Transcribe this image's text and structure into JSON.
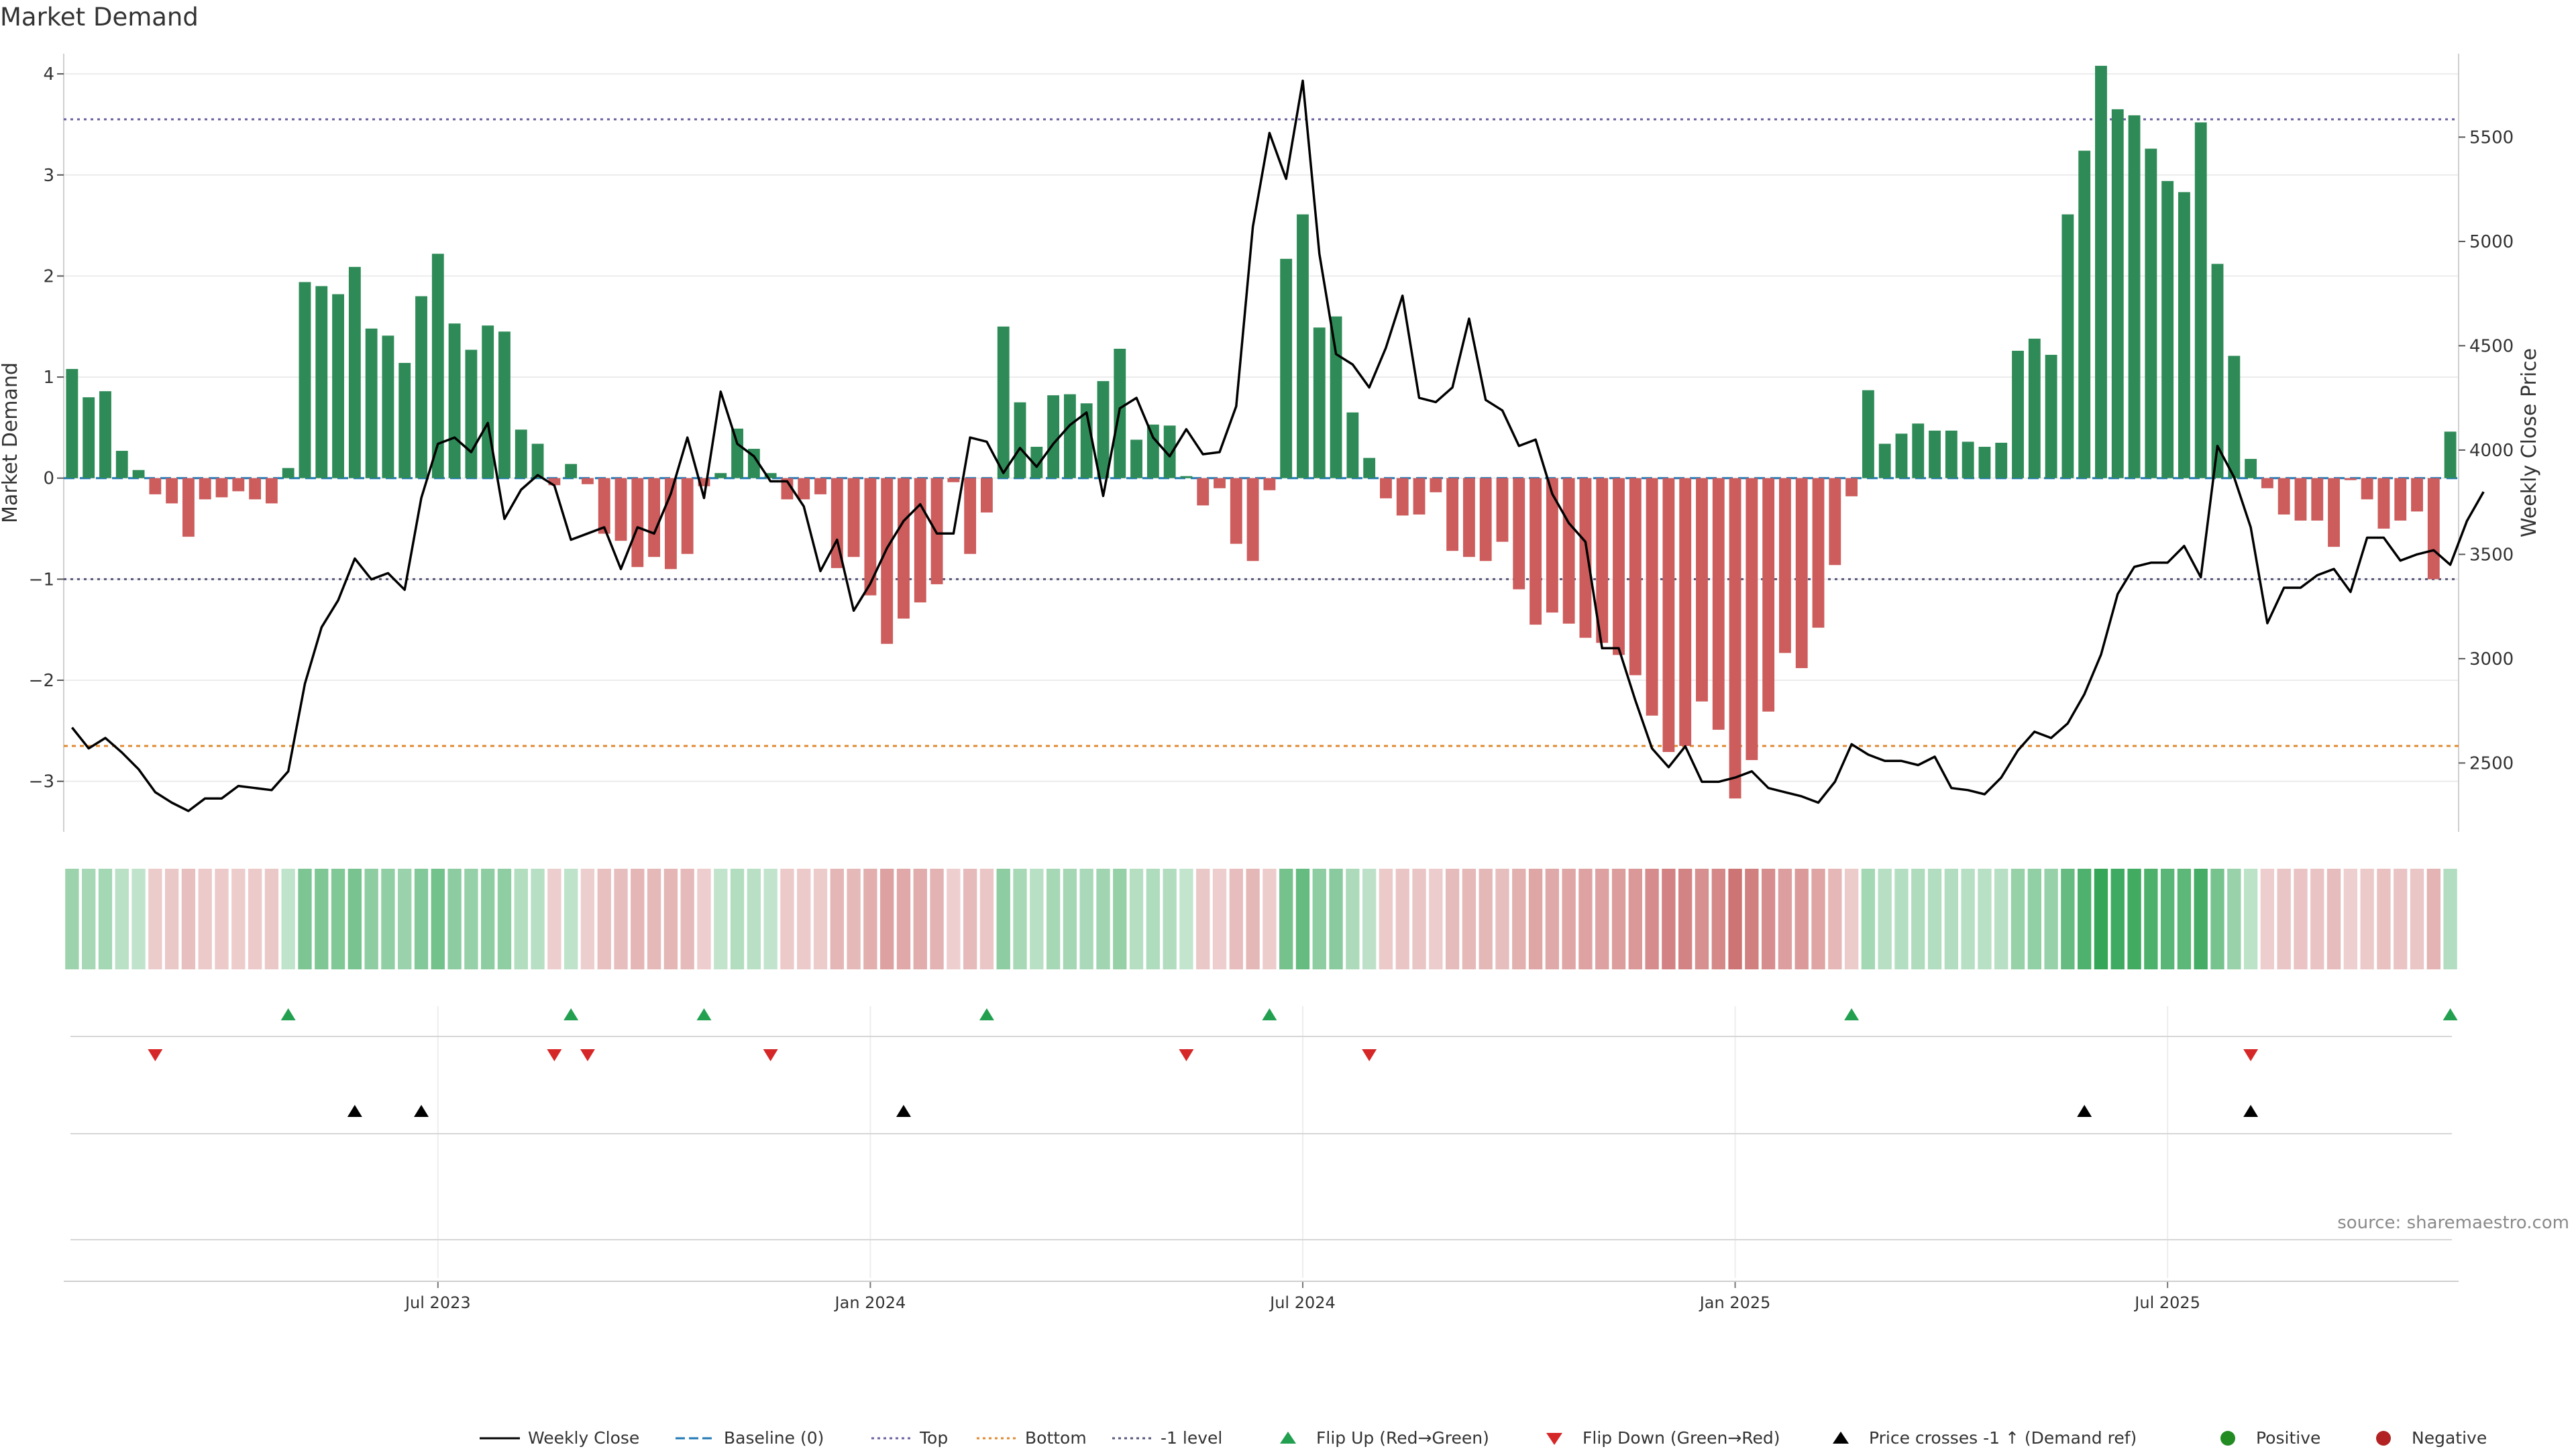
{
  "title": "Market Demand",
  "source": "source: sharemaestro.com",
  "colors": {
    "positive_bar": "#2e8b57",
    "negative_bar": "#cd5c5c",
    "close_line": "#000000",
    "top_line": "#6b5fa0",
    "bottom_line": "#e08a2e",
    "minus1_line": "#555577",
    "baseline": "#1f77b4",
    "flip_up": "#22a050",
    "flip_down": "#d62728",
    "cross": "#000000",
    "positive_dot": "#228b22",
    "negative_dot": "#b22222"
  },
  "chart_data": {
    "type": "bar",
    "title": "Market Demand",
    "ylabel": "Market Demand",
    "y2label": "Weekly Close Price",
    "ylim": [
      -3.5,
      4.2
    ],
    "y2lim": [
      2170,
      5900
    ],
    "yticks": [
      4,
      3,
      2,
      1,
      0,
      -1,
      -2,
      -3
    ],
    "y2ticks": [
      5500,
      5000,
      4500,
      4000,
      3500,
      3000,
      2500
    ],
    "top_level": 3.55,
    "bottom_level": -2.65,
    "minus1_level": -1,
    "x_ticks": [
      {
        "label": "Jul 2023",
        "week": 22
      },
      {
        "label": "Jan 2024",
        "week": 48
      },
      {
        "label": "Jul 2024",
        "week": 74
      },
      {
        "label": "Jan 2025",
        "week": 100
      },
      {
        "label": "Jul 2025",
        "week": 126
      }
    ],
    "demand": [
      1.08,
      0.8,
      0.86,
      0.27,
      0.08,
      -0.16,
      -0.25,
      -0.58,
      -0.21,
      -0.19,
      -0.13,
      -0.21,
      -0.25,
      0.1,
      1.94,
      1.9,
      1.82,
      2.09,
      1.48,
      1.41,
      1.14,
      1.8,
      2.22,
      1.53,
      1.27,
      1.51,
      1.45,
      0.48,
      0.34,
      -0.07,
      0.14,
      -0.06,
      -0.55,
      -0.62,
      -0.88,
      -0.78,
      -0.9,
      -0.75,
      -0.08,
      0.05,
      0.49,
      0.29,
      0.05,
      -0.21,
      -0.21,
      -0.16,
      -0.89,
      -0.78,
      -1.16,
      -1.64,
      -1.39,
      -1.23,
      -1.05,
      -0.04,
      -0.75,
      -0.34,
      1.5,
      0.75,
      0.31,
      0.82,
      0.83,
      0.74,
      0.96,
      1.28,
      0.38,
      0.53,
      0.52,
      0.02,
      -0.27,
      -0.1,
      -0.65,
      -0.82,
      -0.12,
      2.17,
      2.61,
      1.49,
      1.6,
      0.65,
      0.2,
      -0.2,
      -0.37,
      -0.36,
      -0.14,
      -0.72,
      -0.78,
      -0.82,
      -0.63,
      -1.1,
      -1.45,
      -1.33,
      -1.44,
      -1.58,
      -1.63,
      -1.75,
      -1.95,
      -2.35,
      -2.71,
      -2.65,
      -2.21,
      -2.49,
      -3.17,
      -2.79,
      -2.31,
      -1.73,
      -1.88,
      -1.48,
      -0.86,
      -0.18,
      0.87,
      0.34,
      0.44,
      0.54,
      0.47,
      0.47,
      0.36,
      0.31,
      0.35,
      1.26,
      1.38,
      1.22,
      2.61,
      3.24,
      4.08,
      3.65,
      3.59,
      3.26,
      2.94,
      2.83,
      3.52,
      2.12,
      1.21,
      0.19,
      -0.1,
      -0.36,
      -0.42,
      -0.42,
      -0.68,
      -0.02,
      -0.21,
      -0.5,
      -0.42,
      -0.33,
      -1.0,
      0.46
    ],
    "weekly_close": [
      2670,
      2570,
      2620,
      2550,
      2470,
      2360,
      2310,
      2270,
      2330,
      2330,
      2390,
      2380,
      2370,
      2460,
      2880,
      3150,
      3280,
      3480,
      3380,
      3410,
      3330,
      3770,
      4030,
      4060,
      3990,
      4130,
      3670,
      3810,
      3880,
      3830,
      3570,
      3600,
      3630,
      3430,
      3630,
      3600,
      3790,
      4060,
      3770,
      4280,
      4030,
      3970,
      3850,
      3850,
      3730,
      3420,
      3570,
      3230,
      3360,
      3530,
      3660,
      3740,
      3600,
      3600,
      4060,
      4040,
      3890,
      4010,
      3920,
      4030,
      4120,
      4180,
      3780,
      4200,
      4250,
      4060,
      3970,
      4100,
      3980,
      3990,
      4210,
      5070,
      5520,
      5300,
      5770,
      4940,
      4460,
      4410,
      4300,
      4490,
      4740,
      4250,
      4230,
      4300,
      4630,
      4240,
      4190,
      4020,
      4050,
      3790,
      3650,
      3560,
      3050,
      3050,
      2800,
      2570,
      2480,
      2580,
      2410,
      2410,
      2430,
      2460,
      2380,
      2360,
      2340,
      2310,
      2410,
      2590,
      2540,
      2510,
      2510,
      2490,
      2530,
      2380,
      2370,
      2350,
      2430,
      2560,
      2650,
      2620,
      2690,
      2830,
      3020,
      3310,
      3440,
      3460,
      3460,
      3540,
      3390,
      4020,
      3870,
      3630,
      3170,
      3340,
      3340,
      3400,
      3430,
      3320,
      3580,
      3580,
      3470,
      3500,
      3520,
      3450,
      3660,
      3800
    ],
    "flip_up_weeks": [
      13,
      30,
      38,
      55,
      72,
      107,
      143
    ],
    "flip_down_weeks": [
      5,
      29,
      31,
      42,
      67,
      78,
      131
    ],
    "price_cross_weeks": [
      17,
      21,
      50,
      121,
      131
    ],
    "legend": [
      {
        "label": "Weekly Close",
        "kind": "solid"
      },
      {
        "label": "Baseline (0)",
        "kind": "dashed-blue"
      },
      {
        "label": "Top",
        "kind": "dotted-purple"
      },
      {
        "label": "Bottom",
        "kind": "dotted-orange"
      },
      {
        "label": "-1 level",
        "kind": "dotted-gray"
      },
      {
        "label": "Flip Up (Red→Green)",
        "kind": "tri-up-green"
      },
      {
        "label": "Flip Down (Green→Red)",
        "kind": "tri-down-red"
      },
      {
        "label": "Price crosses -1 ↑ (Demand ref)",
        "kind": "tri-up-black"
      },
      {
        "label": "Positive",
        "kind": "dot-green"
      },
      {
        "label": "Negative",
        "kind": "dot-red"
      }
    ]
  }
}
